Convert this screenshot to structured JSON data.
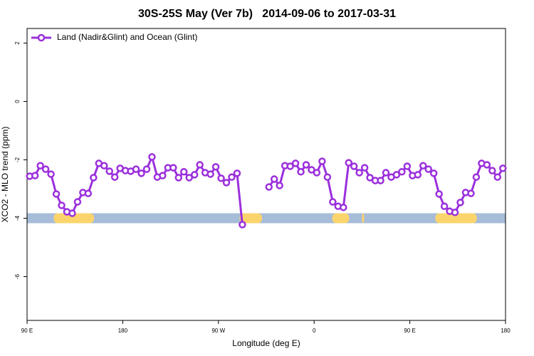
{
  "chart_data": {
    "type": "line",
    "title": "30S-25S May (Ver 7b)   2014-09-06 to 2017-03-31",
    "xlabel": "Longitude (deg E)",
    "ylabel": "XCO2 - MLO trend (ppm)",
    "xlim": [
      90,
      540
    ],
    "ylim": [
      -7.5,
      2.5
    ],
    "xticks": [
      {
        "value": 90,
        "label": "90 E"
      },
      {
        "value": 180,
        "label": "180"
      },
      {
        "value": 270,
        "label": "90 W"
      },
      {
        "value": 360,
        "label": "0"
      },
      {
        "value": 450,
        "label": "90 E"
      },
      {
        "value": 540,
        "label": "180"
      }
    ],
    "yticks": [
      -6,
      -4,
      -2,
      0,
      2
    ],
    "legend": "top-left",
    "band": {
      "y": -4,
      "color": "#a7bcd9",
      "land_color": "#fbd46c",
      "land": [
        [
          115,
          153
        ],
        [
          290,
          311
        ],
        [
          377,
          393
        ],
        [
          405,
          407
        ],
        [
          474,
          513
        ]
      ]
    },
    "series": [
      {
        "name": "Land (Nadir&Glint) and Ocean (Glint)",
        "color": "#9b30dc",
        "x": [
          92.5,
          97.5,
          102.5,
          107.5,
          112.5,
          117.5,
          122.5,
          127.5,
          132.5,
          137.5,
          142.5,
          147.5,
          152.5,
          157.5,
          162.5,
          167.5,
          172.5,
          177.5,
          182.5,
          187.5,
          192.5,
          197.5,
          202.5,
          207.5,
          212.5,
          217.5,
          222.5,
          227.5,
          232.5,
          237.5,
          242.5,
          247.5,
          252.5,
          257.5,
          262.5,
          267.5,
          272.5,
          277.5,
          282.5,
          287.5,
          292.5,
          297.5,
          302.5,
          307.5,
          312.5,
          317.5,
          322.5,
          327.5,
          332.5,
          337.5,
          342.5,
          347.5,
          352.5,
          357.5,
          362.5,
          367.5,
          372.5,
          377.5,
          382.5,
          387.5,
          392.5,
          397.5,
          402.5,
          407.5,
          412.5,
          417.5,
          422.5,
          427.5,
          432.5,
          437.5,
          442.5,
          447.5,
          452.5,
          457.5,
          462.5,
          467.5,
          472.5,
          477.5,
          482.5,
          487.5,
          492.5,
          497.5,
          502.5,
          507.5,
          512.5,
          517.5,
          522.5,
          527.5,
          532.5,
          537.5
        ],
        "values": [
          -2.56,
          -2.54,
          -2.2,
          -2.32,
          -2.49,
          -3.17,
          -3.56,
          -3.78,
          -3.83,
          -3.44,
          -3.12,
          -3.15,
          -2.61,
          -2.12,
          -2.2,
          -2.39,
          -2.59,
          -2.29,
          -2.37,
          -2.39,
          -2.32,
          -2.46,
          -2.32,
          -1.9,
          -2.59,
          -2.54,
          -2.27,
          -2.27,
          -2.61,
          -2.41,
          -2.61,
          -2.51,
          -2.17,
          -2.44,
          -2.49,
          -2.24,
          -2.63,
          -2.78,
          -2.59,
          -2.46,
          -4.22,
          null,
          null,
          null,
          null,
          -2.93,
          -2.66,
          -2.88,
          -2.2,
          -2.22,
          -2.12,
          -2.41,
          -2.17,
          -2.34,
          -2.44,
          -2.05,
          -2.59,
          -3.44,
          -3.59,
          -3.63,
          -2.1,
          -2.22,
          -2.44,
          -2.27,
          -2.61,
          -2.71,
          -2.71,
          -2.44,
          -2.59,
          -2.51,
          -2.41,
          -2.22,
          -2.54,
          -2.51,
          -2.2,
          -2.32,
          -2.46,
          -3.17,
          -3.59,
          -3.76,
          -3.8,
          -3.46,
          -3.12,
          -3.15,
          -2.59,
          -2.12,
          -2.17,
          -2.37,
          -2.59,
          -2.29
        ]
      }
    ]
  }
}
